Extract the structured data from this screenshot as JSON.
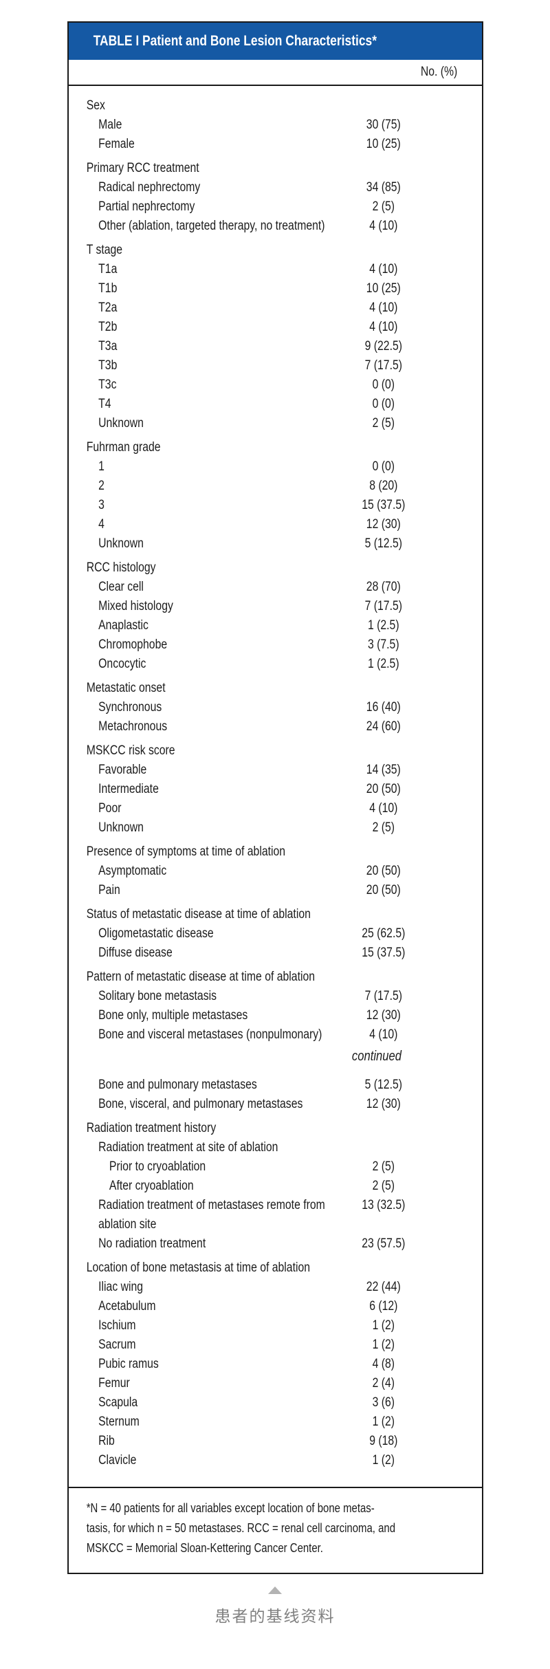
{
  "colors": {
    "header_bg": "#1559A4",
    "border": "#1A1A1A",
    "text": "#1C1C1C",
    "caption_gray": "#808080",
    "triangle_gray": "#B3B3B3"
  },
  "table": {
    "title": "TABLE I Patient and Bone Lesion Characteristics*",
    "column_header": "No. (%)",
    "continued_label": "continued",
    "sections": [
      {
        "label": "Sex",
        "rows": [
          {
            "label": "Male",
            "value": "30 (75)",
            "indent": 1
          },
          {
            "label": "Female",
            "value": "10 (25)",
            "indent": 1
          }
        ]
      },
      {
        "label": "Primary RCC treatment",
        "rows": [
          {
            "label": "Radical nephrectomy",
            "value": "34 (85)",
            "indent": 1
          },
          {
            "label": "Partial nephrectomy",
            "value": "2 (5)",
            "indent": 1
          },
          {
            "label": "Other (ablation, targeted therapy, no treatment)",
            "value": "4 (10)",
            "indent": 1
          }
        ]
      },
      {
        "label": "T stage",
        "rows": [
          {
            "label": "T1a",
            "value": "4 (10)",
            "indent": 1
          },
          {
            "label": "T1b",
            "value": "10 (25)",
            "indent": 1
          },
          {
            "label": "T2a",
            "value": "4 (10)",
            "indent": 1
          },
          {
            "label": "T2b",
            "value": "4 (10)",
            "indent": 1
          },
          {
            "label": "T3a",
            "value": "9 (22.5)",
            "indent": 1
          },
          {
            "label": "T3b",
            "value": "7 (17.5)",
            "indent": 1
          },
          {
            "label": "T3c",
            "value": "0 (0)",
            "indent": 1
          },
          {
            "label": "T4",
            "value": "0 (0)",
            "indent": 1
          },
          {
            "label": "Unknown",
            "value": "2 (5)",
            "indent": 1
          }
        ]
      },
      {
        "label": "Fuhrman grade",
        "rows": [
          {
            "label": "1",
            "value": "0 (0)",
            "indent": 1
          },
          {
            "label": "2",
            "value": "8 (20)",
            "indent": 1
          },
          {
            "label": "3",
            "value": "15 (37.5)",
            "indent": 1
          },
          {
            "label": "4",
            "value": "12 (30)",
            "indent": 1
          },
          {
            "label": "Unknown",
            "value": "5 (12.5)",
            "indent": 1
          }
        ]
      },
      {
        "label": "RCC histology",
        "rows": [
          {
            "label": "Clear cell",
            "value": "28 (70)",
            "indent": 1
          },
          {
            "label": "Mixed histology",
            "value": "7 (17.5)",
            "indent": 1
          },
          {
            "label": "Anaplastic",
            "value": "1 (2.5)",
            "indent": 1
          },
          {
            "label": "Chromophobe",
            "value": "3 (7.5)",
            "indent": 1
          },
          {
            "label": "Oncocytic",
            "value": "1 (2.5)",
            "indent": 1
          }
        ]
      },
      {
        "label": "Metastatic onset",
        "rows": [
          {
            "label": "Synchronous",
            "value": "16 (40)",
            "indent": 1
          },
          {
            "label": "Metachronous",
            "value": "24 (60)",
            "indent": 1
          }
        ]
      },
      {
        "label": "MSKCC risk score",
        "rows": [
          {
            "label": "Favorable",
            "value": "14 (35)",
            "indent": 1
          },
          {
            "label": "Intermediate",
            "value": "20 (50)",
            "indent": 1
          },
          {
            "label": "Poor",
            "value": "4 (10)",
            "indent": 1
          },
          {
            "label": "Unknown",
            "value": "2 (5)",
            "indent": 1
          }
        ]
      },
      {
        "label": "Presence of symptoms at time of ablation",
        "rows": [
          {
            "label": "Asymptomatic",
            "value": "20 (50)",
            "indent": 1
          },
          {
            "label": "Pain",
            "value": "20 (50)",
            "indent": 1
          }
        ]
      },
      {
        "label": "Status of metastatic disease at time of ablation",
        "rows": [
          {
            "label": "Oligometastatic disease",
            "value": "25 (62.5)",
            "indent": 1
          },
          {
            "label": "Diffuse disease",
            "value": "15 (37.5)",
            "indent": 1
          }
        ]
      },
      {
        "label": "Pattern of metastatic disease at time of ablation",
        "rows": [
          {
            "label": "Solitary bone metastasis",
            "value": "7 (17.5)",
            "indent": 1
          },
          {
            "label": "Bone only, multiple metastases",
            "value": "12 (30)",
            "indent": 1
          },
          {
            "label": "Bone and visceral metastases (nonpulmonary)",
            "value": "4 (10)",
            "indent": 1
          },
          {
            "kind": "continued"
          },
          {
            "label": "Bone and pulmonary metastases",
            "value": "5 (12.5)",
            "indent": 1
          },
          {
            "label": "Bone, visceral, and pulmonary metastases",
            "value": "12 (30)",
            "indent": 1
          }
        ]
      },
      {
        "label": "Radiation treatment history",
        "rows": [
          {
            "label": "Radiation treatment at site of ablation",
            "value": "",
            "indent": 1
          },
          {
            "label": "Prior to cryoablation",
            "value": "2 (5)",
            "indent": 2
          },
          {
            "label": "After cryoablation",
            "value": "2 (5)",
            "indent": 2
          },
          {
            "label": "Radiation treatment of metastases remote from\nablation site",
            "value": "13 (32.5)",
            "indent": 1
          },
          {
            "label": "No radiation treatment",
            "value": "23 (57.5)",
            "indent": 1
          }
        ]
      },
      {
        "label": "Location of bone metastasis at time of ablation",
        "rows": [
          {
            "label": "Iliac wing",
            "value": "22 (44)",
            "indent": 1
          },
          {
            "label": "Acetabulum",
            "value": "6 (12)",
            "indent": 1
          },
          {
            "label": "Ischium",
            "value": "1 (2)",
            "indent": 1
          },
          {
            "label": "Sacrum",
            "value": "1 (2)",
            "indent": 1
          },
          {
            "label": "Pubic ramus",
            "value": "4 (8)",
            "indent": 1
          },
          {
            "label": "Femur",
            "value": "2 (4)",
            "indent": 1
          },
          {
            "label": "Scapula",
            "value": "3 (6)",
            "indent": 1
          },
          {
            "label": "Sternum",
            "value": "1 (2)",
            "indent": 1
          },
          {
            "label": "Rib",
            "value": "9 (18)",
            "indent": 1
          },
          {
            "label": "Clavicle",
            "value": "1 (2)",
            "indent": 1
          }
        ]
      }
    ],
    "footnote_lines": [
      "*N = 40 patients for all variables except location of bone metas-",
      "tasis, for which n = 50 metastases. RCC = renal cell carcinoma, and",
      "MSKCC = Memorial Sloan-Kettering Cancer Center."
    ]
  },
  "caption": {
    "text": "患者的基线资料"
  }
}
